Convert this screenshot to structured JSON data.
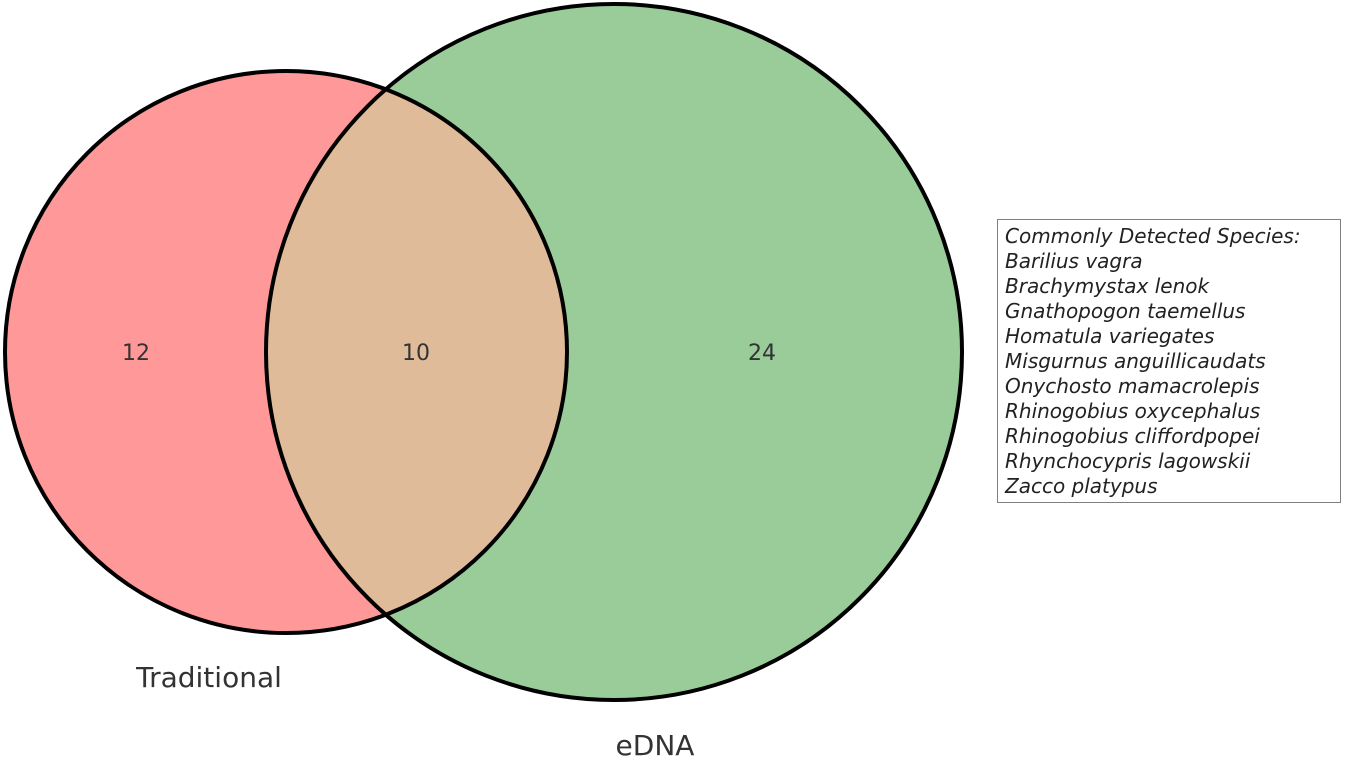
{
  "sets": [
    {
      "name": "Traditional",
      "color": "#ff9999"
    },
    {
      "name": "eDNA",
      "color": "#99cc99"
    }
  ],
  "intersection_color": "#e0bb99",
  "regions": {
    "traditional_only": "12",
    "both": "10",
    "edna_only": "24"
  },
  "legend": {
    "title": "Commonly Detected Species:",
    "species": [
      "Barilius vagra",
      "Brachymystax lenok",
      "Gnathopogon taemellus",
      "Homatula variegates",
      "Misgurnus anguillicaudats",
      "Onychosto mamacrolepis",
      "Rhinogobius oxycephalus",
      "Rhinogobius cliffordpopei",
      "Rhynchocypris lagowskii",
      "Zacco platypus"
    ]
  }
}
